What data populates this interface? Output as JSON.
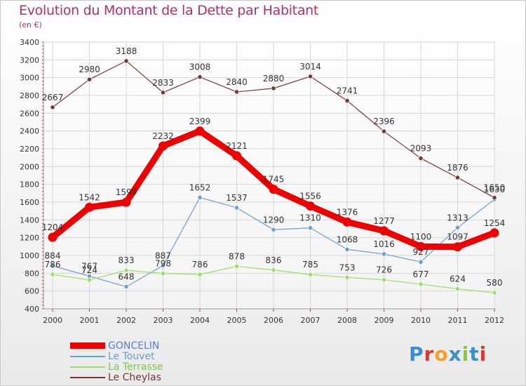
{
  "title": "Evolution du Montant de la Dette par Habitant",
  "subtitle": "(en €)",
  "logo_text": "Proxiti",
  "logo_colors": [
    "#3b8fd1",
    "#e0382d",
    "#f2a02a",
    "#3b8fd1",
    "#8bc53f",
    "#3b8fd1",
    "#e0382d"
  ],
  "chart_data": {
    "type": "line",
    "x": [
      "2000",
      "2001",
      "2002",
      "2003",
      "2004",
      "2005",
      "2006",
      "2007",
      "2008",
      "2009",
      "2010",
      "2011",
      "2012"
    ],
    "ylim": [
      400,
      3400
    ],
    "yticks": [
      400,
      600,
      800,
      1000,
      1200,
      1400,
      1600,
      1800,
      2000,
      2200,
      2400,
      2600,
      2800,
      3000,
      3200,
      3400
    ],
    "grid": true,
    "legend_position": "bottom-left",
    "series": [
      {
        "name": "GONCELIN",
        "color": "#ee0000",
        "values": [
          1204,
          1542,
          1599,
          2232,
          2399,
          2121,
          1745,
          1556,
          1376,
          1277,
          1100,
          1097,
          1254
        ]
      },
      {
        "name": "Le Touvet",
        "color": "#6a9fd0",
        "values": [
          884,
          767,
          648,
          887,
          1652,
          1537,
          1290,
          1310,
          1068,
          1016,
          927,
          1313,
          1630
        ]
      },
      {
        "name": "La Terrasse",
        "color": "#99e066",
        "values": [
          786,
          724,
          833,
          798,
          786,
          878,
          836,
          785,
          753,
          726,
          677,
          624,
          580
        ]
      },
      {
        "name": "Le Cheylas",
        "color": "#7a3535",
        "values": [
          2667,
          2980,
          3188,
          2833,
          3008,
          2840,
          2880,
          3014,
          2741,
          2396,
          2093,
          1876,
          1650
        ]
      }
    ]
  }
}
